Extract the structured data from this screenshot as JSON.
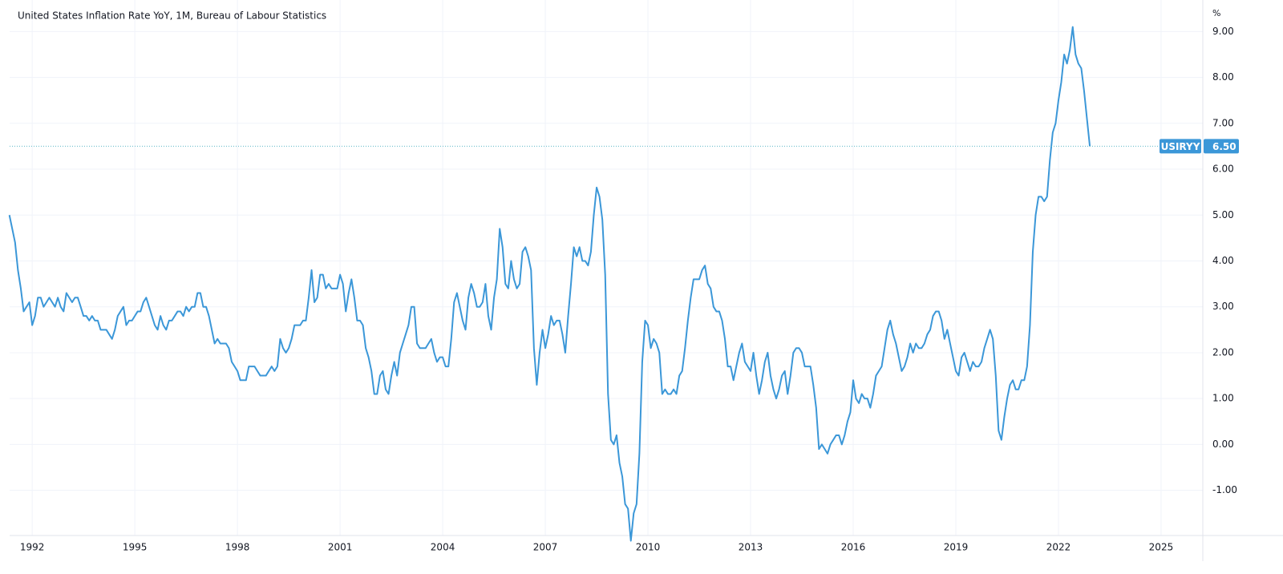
{
  "chart_data": {
    "type": "line",
    "title": "United States Inflation Rate YoY, 1M, Bureau of Labour Statistics",
    "y_unit": "%",
    "xlim": [
      1991.34,
      2026.22
    ],
    "xticks": [
      1992,
      1995,
      1998,
      2001,
      2004,
      2007,
      2010,
      2013,
      2016,
      2019,
      2022,
      2025
    ],
    "ylim": [
      -1.95,
      9.6
    ],
    "yticks": [
      {
        "value": -1,
        "label": "-1.00"
      },
      {
        "value": 0,
        "label": "0.00"
      },
      {
        "value": 1,
        "label": "1.00"
      },
      {
        "value": 2,
        "label": "2.00"
      },
      {
        "value": 3,
        "label": "3.00"
      },
      {
        "value": 4,
        "label": "4.00"
      },
      {
        "value": 5,
        "label": "5.00"
      },
      {
        "value": 6,
        "label": "6.00"
      },
      {
        "value": 7,
        "label": "7.00"
      },
      {
        "value": 8,
        "label": "8.00"
      },
      {
        "value": 9,
        "label": "9.00"
      }
    ],
    "grid": true,
    "last_value_tag": {
      "name": "USIRYY",
      "value": 6.5,
      "label": "6.50"
    },
    "series": [
      {
        "name": "USIRYY",
        "color": "#3b97d8",
        "x": [
          1991.333,
          1991.417,
          1991.5,
          1991.583,
          1991.667,
          1991.75,
          1991.833,
          1991.917,
          1992,
          1992.083,
          1992.167,
          1992.25,
          1992.333,
          1992.417,
          1992.5,
          1992.583,
          1992.667,
          1992.75,
          1992.833,
          1992.917,
          1993,
          1993.083,
          1993.167,
          1993.25,
          1993.333,
          1993.417,
          1993.5,
          1993.583,
          1993.667,
          1993.75,
          1993.833,
          1993.917,
          1994,
          1994.083,
          1994.167,
          1994.25,
          1994.333,
          1994.417,
          1994.5,
          1994.583,
          1994.667,
          1994.75,
          1994.833,
          1994.917,
          1995,
          1995.083,
          1995.167,
          1995.25,
          1995.333,
          1995.417,
          1995.5,
          1995.583,
          1995.667,
          1995.75,
          1995.833,
          1995.917,
          1996,
          1996.083,
          1996.167,
          1996.25,
          1996.333,
          1996.417,
          1996.5,
          1996.583,
          1996.667,
          1996.75,
          1996.833,
          1996.917,
          1997,
          1997.083,
          1997.167,
          1997.25,
          1997.333,
          1997.417,
          1997.5,
          1997.583,
          1997.667,
          1997.75,
          1997.833,
          1997.917,
          1998,
          1998.083,
          1998.167,
          1998.25,
          1998.333,
          1998.417,
          1998.5,
          1998.583,
          1998.667,
          1998.75,
          1998.833,
          1998.917,
          1999,
          1999.083,
          1999.167,
          1999.25,
          1999.333,
          1999.417,
          1999.5,
          1999.583,
          1999.667,
          1999.75,
          1999.833,
          1999.917,
          2000,
          2000.083,
          2000.167,
          2000.25,
          2000.333,
          2000.417,
          2000.5,
          2000.583,
          2000.667,
          2000.75,
          2000.833,
          2000.917,
          2001,
          2001.083,
          2001.167,
          2001.25,
          2001.333,
          2001.417,
          2001.5,
          2001.583,
          2001.667,
          2001.75,
          2001.833,
          2001.917,
          2002,
          2002.083,
          2002.167,
          2002.25,
          2002.333,
          2002.417,
          2002.5,
          2002.583,
          2002.667,
          2002.75,
          2002.833,
          2002.917,
          2003,
          2003.083,
          2003.167,
          2003.25,
          2003.333,
          2003.417,
          2003.5,
          2003.583,
          2003.667,
          2003.75,
          2003.833,
          2003.917,
          2004,
          2004.083,
          2004.167,
          2004.25,
          2004.333,
          2004.417,
          2004.5,
          2004.583,
          2004.667,
          2004.75,
          2004.833,
          2004.917,
          2005,
          2005.083,
          2005.167,
          2005.25,
          2005.333,
          2005.417,
          2005.5,
          2005.583,
          2005.667,
          2005.75,
          2005.833,
          2005.917,
          2006,
          2006.083,
          2006.167,
          2006.25,
          2006.333,
          2006.417,
          2006.5,
          2006.583,
          2006.667,
          2006.75,
          2006.833,
          2006.917,
          2007,
          2007.083,
          2007.167,
          2007.25,
          2007.333,
          2007.417,
          2007.5,
          2007.583,
          2007.667,
          2007.75,
          2007.833,
          2007.917,
          2008,
          2008.083,
          2008.167,
          2008.25,
          2008.333,
          2008.417,
          2008.5,
          2008.583,
          2008.667,
          2008.75,
          2008.833,
          2008.917,
          2009,
          2009.083,
          2009.167,
          2009.25,
          2009.333,
          2009.417,
          2009.5,
          2009.583,
          2009.667,
          2009.75,
          2009.833,
          2009.917,
          2010,
          2010.083,
          2010.167,
          2010.25,
          2010.333,
          2010.417,
          2010.5,
          2010.583,
          2010.667,
          2010.75,
          2010.833,
          2010.917,
          2011,
          2011.083,
          2011.167,
          2011.25,
          2011.333,
          2011.417,
          2011.5,
          2011.583,
          2011.667,
          2011.75,
          2011.833,
          2011.917,
          2012,
          2012.083,
          2012.167,
          2012.25,
          2012.333,
          2012.417,
          2012.5,
          2012.583,
          2012.667,
          2012.75,
          2012.833,
          2012.917,
          2013,
          2013.083,
          2013.167,
          2013.25,
          2013.333,
          2013.417,
          2013.5,
          2013.583,
          2013.667,
          2013.75,
          2013.833,
          2013.917,
          2014,
          2014.083,
          2014.167,
          2014.25,
          2014.333,
          2014.417,
          2014.5,
          2014.583,
          2014.667,
          2014.75,
          2014.833,
          2014.917,
          2015,
          2015.083,
          2015.167,
          2015.25,
          2015.333,
          2015.417,
          2015.5,
          2015.583,
          2015.667,
          2015.75,
          2015.833,
          2015.917,
          2016,
          2016.083,
          2016.167,
          2016.25,
          2016.333,
          2016.417,
          2016.5,
          2016.583,
          2016.667,
          2016.75,
          2016.833,
          2016.917,
          2017,
          2017.083,
          2017.167,
          2017.25,
          2017.333,
          2017.417,
          2017.5,
          2017.583,
          2017.667,
          2017.75,
          2017.833,
          2017.917,
          2018,
          2018.083,
          2018.167,
          2018.25,
          2018.333,
          2018.417,
          2018.5,
          2018.583,
          2018.667,
          2018.75,
          2018.833,
          2018.917,
          2019,
          2019.083,
          2019.167,
          2019.25,
          2019.333,
          2019.417,
          2019.5,
          2019.583,
          2019.667,
          2019.75,
          2019.833,
          2019.917,
          2020,
          2020.083,
          2020.167,
          2020.25,
          2020.333,
          2020.417,
          2020.5,
          2020.583,
          2020.667,
          2020.75,
          2020.833,
          2020.917,
          2021,
          2021.083,
          2021.167,
          2021.25,
          2021.333,
          2021.417,
          2021.5,
          2021.583,
          2021.667,
          2021.75,
          2021.833,
          2021.917,
          2022,
          2022.083,
          2022.167,
          2022.25,
          2022.333,
          2022.417,
          2022.5,
          2022.583,
          2022.667,
          2022.75,
          2022.833,
          2022.917
        ],
        "values": [
          5.0,
          4.7,
          4.4,
          3.8,
          3.4,
          2.9,
          3.0,
          3.1,
          2.6,
          2.8,
          3.2,
          3.2,
          3.0,
          3.1,
          3.2,
          3.1,
          3.0,
          3.2,
          3.0,
          2.9,
          3.3,
          3.2,
          3.1,
          3.2,
          3.2,
          3.0,
          2.8,
          2.8,
          2.7,
          2.8,
          2.7,
          2.7,
          2.5,
          2.5,
          2.5,
          2.4,
          2.3,
          2.5,
          2.8,
          2.9,
          3.0,
          2.6,
          2.7,
          2.7,
          2.8,
          2.9,
          2.9,
          3.1,
          3.2,
          3.0,
          2.8,
          2.6,
          2.5,
          2.8,
          2.6,
          2.5,
          2.7,
          2.7,
          2.8,
          2.9,
          2.9,
          2.8,
          3.0,
          2.9,
          3.0,
          3.0,
          3.3,
          3.3,
          3.0,
          3.0,
          2.8,
          2.5,
          2.2,
          2.3,
          2.2,
          2.2,
          2.2,
          2.1,
          1.8,
          1.7,
          1.6,
          1.4,
          1.4,
          1.4,
          1.7,
          1.7,
          1.7,
          1.6,
          1.5,
          1.5,
          1.5,
          1.6,
          1.7,
          1.6,
          1.7,
          2.3,
          2.1,
          2.0,
          2.1,
          2.3,
          2.6,
          2.6,
          2.6,
          2.7,
          2.7,
          3.2,
          3.8,
          3.1,
          3.2,
          3.7,
          3.7,
          3.4,
          3.5,
          3.4,
          3.4,
          3.4,
          3.7,
          3.5,
          2.9,
          3.3,
          3.6,
          3.2,
          2.7,
          2.7,
          2.6,
          2.1,
          1.9,
          1.6,
          1.1,
          1.1,
          1.5,
          1.6,
          1.2,
          1.1,
          1.5,
          1.8,
          1.5,
          2.0,
          2.2,
          2.4,
          2.6,
          3.0,
          3.0,
          2.2,
          2.1,
          2.1,
          2.1,
          2.2,
          2.3,
          2.0,
          1.8,
          1.9,
          1.9,
          1.7,
          1.7,
          2.3,
          3.1,
          3.3,
          3.0,
          2.7,
          2.5,
          3.2,
          3.5,
          3.3,
          3.0,
          3.0,
          3.1,
          3.5,
          2.8,
          2.5,
          3.2,
          3.6,
          4.7,
          4.3,
          3.5,
          3.4,
          4.0,
          3.6,
          3.4,
          3.5,
          4.2,
          4.3,
          4.1,
          3.8,
          2.1,
          1.3,
          2.0,
          2.5,
          2.1,
          2.4,
          2.8,
          2.6,
          2.7,
          2.7,
          2.4,
          2.0,
          2.8,
          3.5,
          4.3,
          4.1,
          4.3,
          4.0,
          4.0,
          3.9,
          4.2,
          5.0,
          5.6,
          5.4,
          4.9,
          3.7,
          1.1,
          0.1,
          0.0,
          0.2,
          -0.4,
          -0.7,
          -1.3,
          -1.4,
          -2.1,
          -1.5,
          -1.3,
          -0.2,
          1.8,
          2.7,
          2.6,
          2.1,
          2.3,
          2.2,
          2.0,
          1.1,
          1.2,
          1.1,
          1.1,
          1.2,
          1.1,
          1.5,
          1.6,
          2.1,
          2.7,
          3.2,
          3.6,
          3.6,
          3.6,
          3.8,
          3.9,
          3.5,
          3.4,
          3.0,
          2.9,
          2.9,
          2.7,
          2.3,
          1.7,
          1.7,
          1.4,
          1.7,
          2.0,
          2.2,
          1.8,
          1.7,
          1.6,
          2.0,
          1.5,
          1.1,
          1.4,
          1.8,
          2.0,
          1.5,
          1.2,
          1.0,
          1.2,
          1.5,
          1.6,
          1.1,
          1.5,
          2.0,
          2.1,
          2.1,
          2.0,
          1.7,
          1.7,
          1.7,
          1.3,
          0.8,
          -0.1,
          0.0,
          -0.1,
          -0.2,
          0.0,
          0.1,
          0.2,
          0.2,
          0.0,
          0.2,
          0.5,
          0.7,
          1.4,
          1.0,
          0.9,
          1.1,
          1.0,
          1.0,
          0.8,
          1.1,
          1.5,
          1.6,
          1.7,
          2.1,
          2.5,
          2.7,
          2.4,
          2.2,
          1.9,
          1.6,
          1.7,
          1.9,
          2.2,
          2.0,
          2.2,
          2.1,
          2.1,
          2.2,
          2.4,
          2.5,
          2.8,
          2.9,
          2.9,
          2.7,
          2.3,
          2.5,
          2.2,
          1.9,
          1.6,
          1.5,
          1.9,
          2.0,
          1.8,
          1.6,
          1.8,
          1.7,
          1.7,
          1.8,
          2.1,
          2.3,
          2.5,
          2.3,
          1.5,
          0.3,
          0.1,
          0.6,
          1.0,
          1.3,
          1.4,
          1.2,
          1.2,
          1.4,
          1.4,
          1.7,
          2.6,
          4.2,
          5.0,
          5.4,
          5.4,
          5.3,
          5.4,
          6.2,
          6.8,
          7.0,
          7.5,
          7.9,
          8.5,
          8.3,
          8.6,
          9.1,
          8.5,
          8.3,
          8.2,
          7.7,
          7.1,
          6.5
        ]
      }
    ]
  }
}
